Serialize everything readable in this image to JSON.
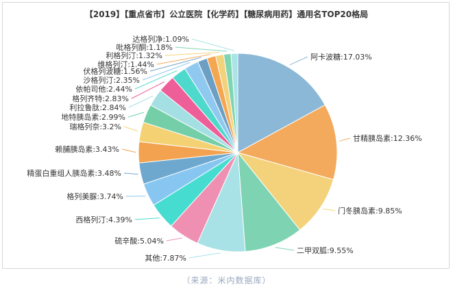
{
  "chart_data": {
    "type": "pie",
    "title": "【2019】【重点省市】公立医院【化学药】【糖尿病用药】通用名TOP20格局",
    "unit": "%",
    "slices": [
      {
        "label": "阿卡波糖",
        "value": 17.03,
        "color": "#8ab8d6"
      },
      {
        "label": "甘精胰岛素",
        "value": 12.36,
        "color": "#f3aa5c"
      },
      {
        "label": "门冬胰岛素",
        "value": 9.85,
        "color": "#f4d27b"
      },
      {
        "label": "二甲双胍",
        "value": 9.55,
        "color": "#7ed3b2"
      },
      {
        "label": "其他",
        "value": 7.87,
        "color": "#a8e2e6"
      },
      {
        "label": "硫辛酸",
        "value": 5.04,
        "color": "#ef8fb1"
      },
      {
        "label": "西格列汀",
        "value": 4.39,
        "color": "#46dcd0"
      },
      {
        "label": "格列美脲",
        "value": 3.74,
        "color": "#87c6f0"
      },
      {
        "label": "精蛋白重组人胰岛素",
        "value": 3.48,
        "color": "#6fa8cf"
      },
      {
        "label": "赖脯胰岛素",
        "value": 3.43,
        "color": "#f3a24f"
      },
      {
        "label": "瑞格列奈",
        "value": 3.2,
        "color": "#f4d173"
      },
      {
        "label": "地特胰岛素",
        "value": 2.99,
        "color": "#74cfa8"
      },
      {
        "label": "利拉鲁肽",
        "value": 2.84,
        "color": "#a4dfe3"
      },
      {
        "label": "格列齐特",
        "value": 2.83,
        "color": "#ee5e98"
      },
      {
        "label": "依帕司他",
        "value": 2.44,
        "color": "#4fd9cd"
      },
      {
        "label": "沙格列汀",
        "value": 2.35,
        "color": "#8fc9f0"
      },
      {
        "label": "伏格列波糖",
        "value": 1.56,
        "color": "#6d9fc4"
      },
      {
        "label": "维格列汀",
        "value": 1.44,
        "color": "#f5a650"
      },
      {
        "label": "利格列汀",
        "value": 1.32,
        "color": "#f3d27c"
      },
      {
        "label": "吡格列酮",
        "value": 1.18,
        "color": "#7fd5b0"
      },
      {
        "label": "达格列净",
        "value": 1.09,
        "color": "#a9e4e6"
      }
    ]
  },
  "source_note": "（来源：米内数据库）"
}
